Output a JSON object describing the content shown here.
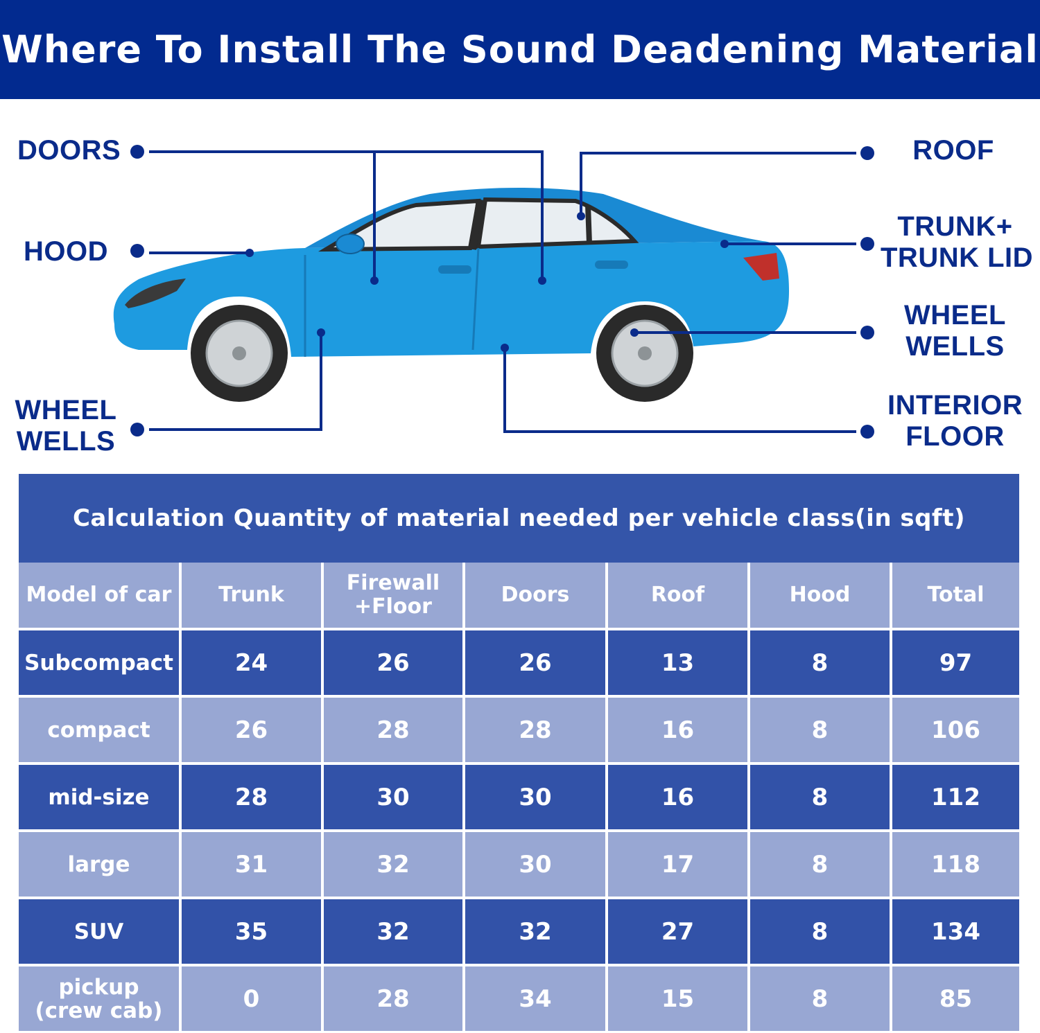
{
  "header": {
    "title": "Where To Install The Sound Deadening Material"
  },
  "callouts": {
    "doors": "DOORS",
    "hood": "HOOD",
    "wheel_wells_left": "WHEEL\nWELLS",
    "roof": "ROOF",
    "trunk": "TRUNK+\nTRUNK LID",
    "wheel_wells_right": "WHEEL\nWELLS",
    "interior_floor": "INTERIOR\nFLOOR"
  },
  "colors": {
    "banner": "#022a8f",
    "table_dark": "#3252a8",
    "table_light": "#98a7d3",
    "car_body": "#1e9be0",
    "callout_text": "#0a2b8a"
  },
  "table": {
    "title": "Calculation Quantity of material needed per vehicle class(in sqft)",
    "columns": [
      "Model of car",
      "Trunk",
      "Firewall\n+Floor",
      "Doors",
      "Roof",
      "Hood",
      "Total"
    ],
    "rows": [
      [
        "Subcompact",
        "24",
        "26",
        "26",
        "13",
        "8",
        "97"
      ],
      [
        "compact",
        "26",
        "28",
        "28",
        "16",
        "8",
        "106"
      ],
      [
        "mid-size",
        "28",
        "30",
        "30",
        "16",
        "8",
        "112"
      ],
      [
        "large",
        "31",
        "32",
        "30",
        "17",
        "8",
        "118"
      ],
      [
        "SUV",
        "35",
        "32",
        "32",
        "27",
        "8",
        "134"
      ],
      [
        "pickup\n(crew cab)",
        "0",
        "28",
        "34",
        "15",
        "8",
        "85"
      ]
    ]
  }
}
